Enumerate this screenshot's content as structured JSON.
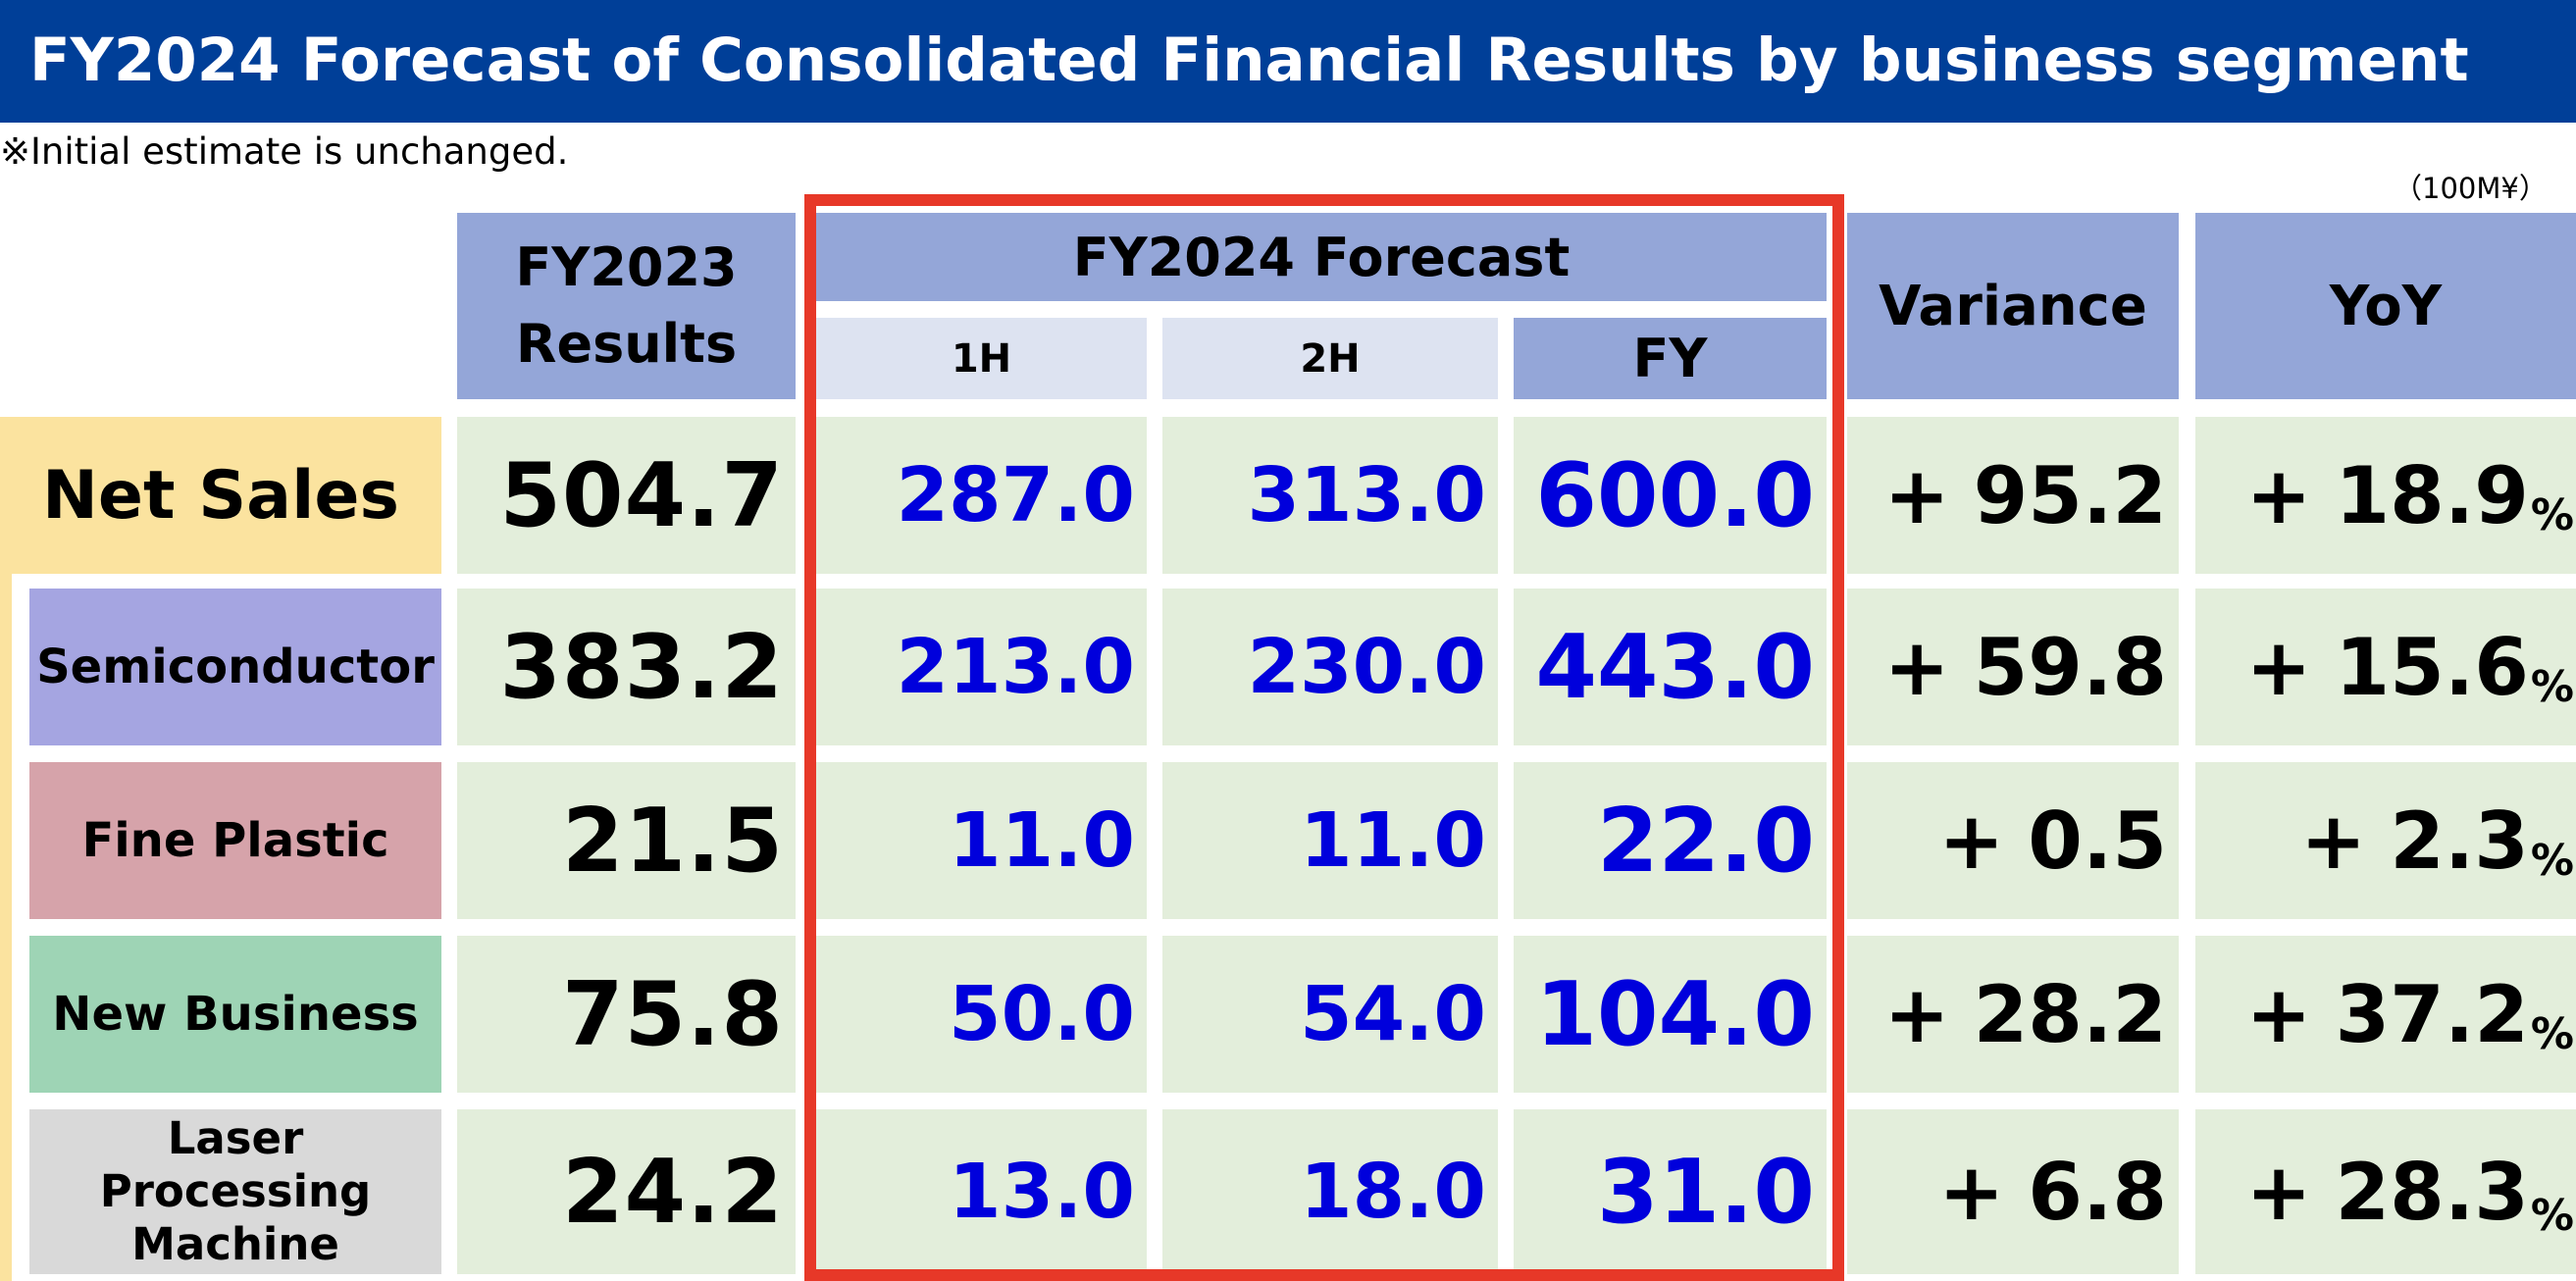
{
  "title": "FY2024 Forecast of Consolidated Financial Results by business segment",
  "note": "※Initial estimate is unchanged.",
  "unit": "（100M¥）",
  "headers": {
    "fy2023": "FY2023 Results",
    "forecast_group": "FY2024 Forecast",
    "h1": "1H",
    "h2": "2H",
    "fy": "FY",
    "variance": "Variance",
    "yoy": "YoY"
  },
  "colors": {
    "title_bg": "#003f98",
    "header_bg": "#94a6d8",
    "subheader_bg": "#dde3f1",
    "value_bg": "#e3eedb",
    "forecast_text": "#0000dc",
    "highlight_border": "#e73828",
    "net_sales_bg": "#fbe39f",
    "semiconductor_bg": "#a5a5e1",
    "fine_plastic_bg": "#d6a3aa",
    "new_business_bg": "#9ed4b5",
    "laser_bg": "#d9d9d9"
  },
  "rows": [
    {
      "label": "Net Sales",
      "fy2023": "504.7",
      "h1": "287.0",
      "h2": "313.0",
      "fy": "600.0",
      "variance": "95.2",
      "yoy": "18.9",
      "sign": "+",
      "pct": "%"
    },
    {
      "label": "Semiconductor",
      "fy2023": "383.2",
      "h1": "213.0",
      "h2": "230.0",
      "fy": "443.0",
      "variance": "59.8",
      "yoy": "15.6",
      "sign": "+",
      "pct": "%"
    },
    {
      "label": "Fine Plastic",
      "fy2023": "21.5",
      "h1": "11.0",
      "h2": "11.0",
      "fy": "22.0",
      "variance": "0.5",
      "yoy": "2.3",
      "sign": "+",
      "pct": "%"
    },
    {
      "label": "New Business",
      "fy2023": "75.8",
      "h1": "50.0",
      "h2": "54.0",
      "fy": "104.0",
      "variance": "28.2",
      "yoy": "37.2",
      "sign": "+",
      "pct": "%"
    },
    {
      "label": "Laser Processing Machine",
      "fy2023": "24.2",
      "h1": "13.0",
      "h2": "18.0",
      "fy": "31.0",
      "variance": "6.8",
      "yoy": "28.3",
      "sign": "+",
      "pct": "%"
    }
  ]
}
